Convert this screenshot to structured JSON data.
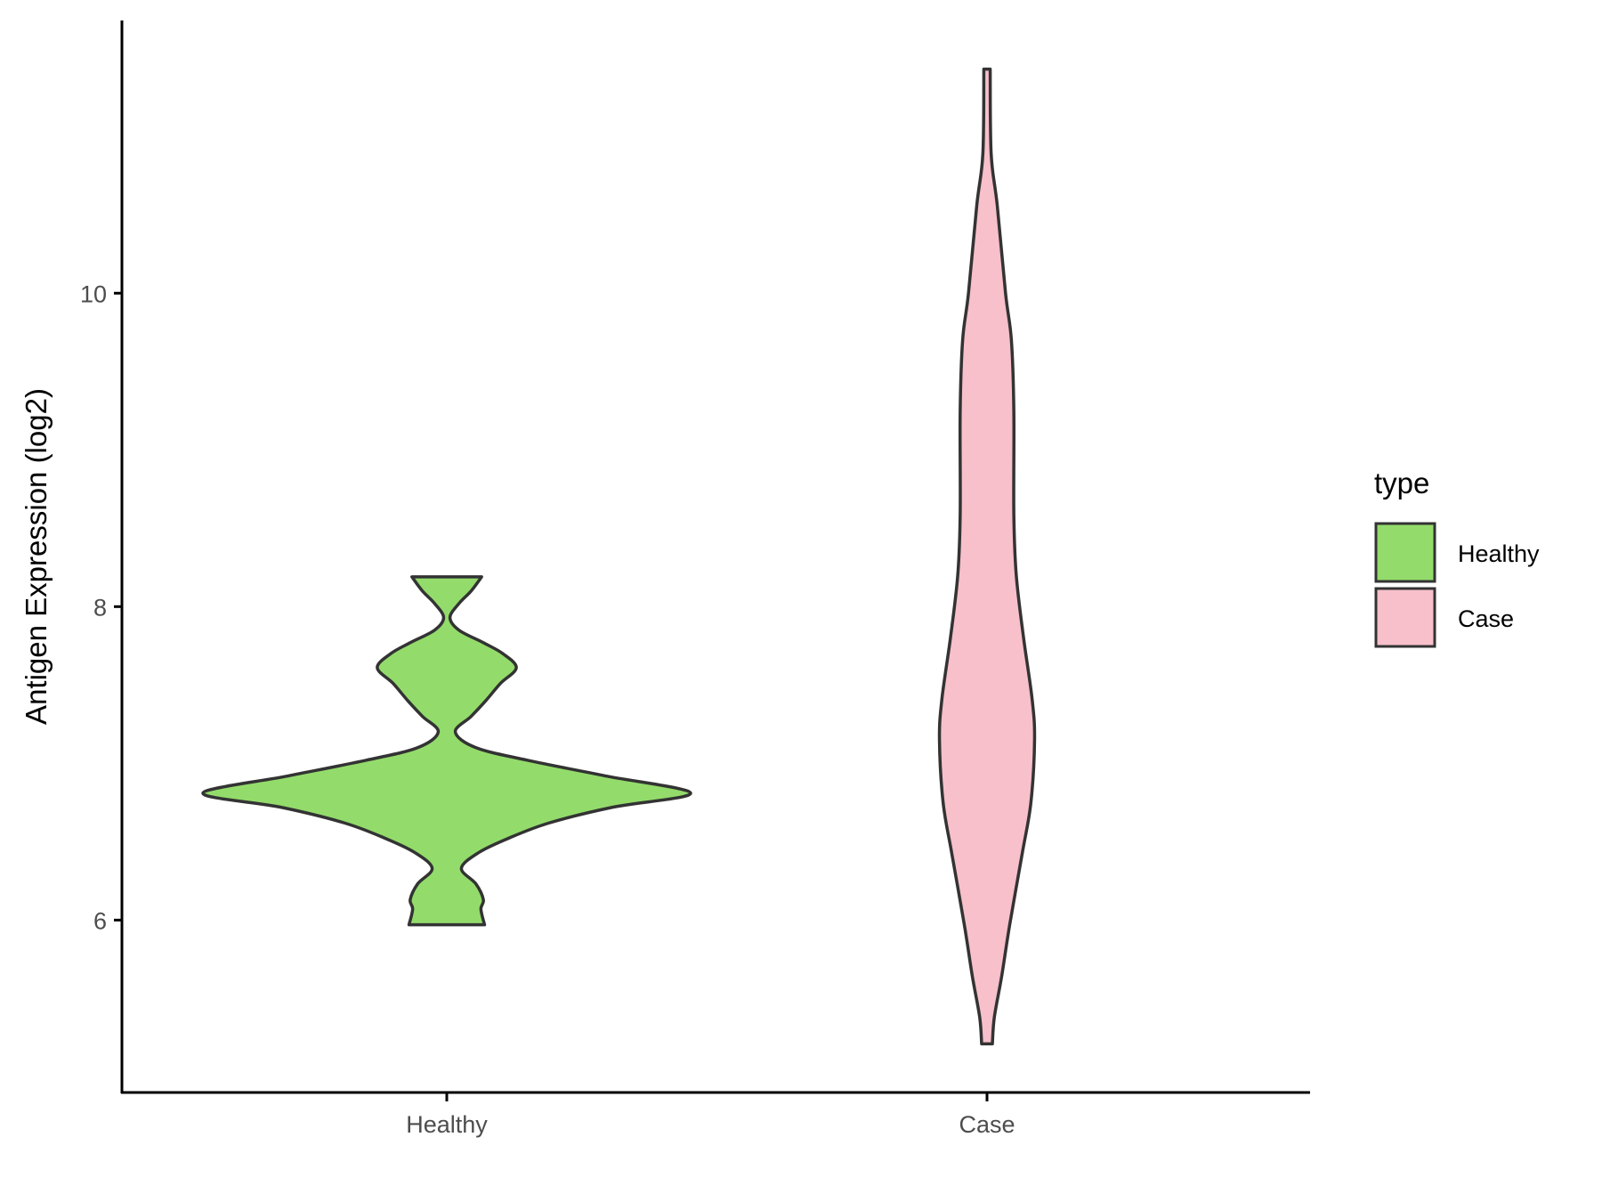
{
  "chart_data": {
    "type": "violin",
    "title": "",
    "xlabel": "",
    "ylabel": "Antigen Expression (log2)",
    "categories": [
      "Healthy",
      "Case"
    ],
    "ylim": [
      4.9,
      11.74
    ],
    "yticks": [
      6,
      8,
      10
    ],
    "ytick_labels": [
      "6",
      "8",
      "10"
    ],
    "grid": false,
    "legend": {
      "title": "type",
      "position": "right",
      "entries": [
        "Healthy",
        "Case"
      ]
    },
    "series": [
      {
        "name": "Healthy",
        "color": "#93dc6b",
        "min": 5.97,
        "max": 8.19,
        "profile": [
          [
            8.19,
            0.143
          ],
          [
            8.1,
            0.1
          ],
          [
            8.02,
            0.05
          ],
          [
            7.93,
            0.013
          ],
          [
            7.85,
            0.05
          ],
          [
            7.77,
            0.15
          ],
          [
            7.7,
            0.23
          ],
          [
            7.61,
            0.285
          ],
          [
            7.51,
            0.22
          ],
          [
            7.4,
            0.16
          ],
          [
            7.3,
            0.1
          ],
          [
            7.2,
            0.035
          ],
          [
            7.1,
            0.12
          ],
          [
            7.02,
            0.33
          ],
          [
            6.92,
            0.65
          ],
          [
            6.81,
            1.0
          ],
          [
            6.72,
            0.68
          ],
          [
            6.62,
            0.42
          ],
          [
            6.52,
            0.25
          ],
          [
            6.43,
            0.13
          ],
          [
            6.33,
            0.06
          ],
          [
            6.23,
            0.12
          ],
          [
            6.13,
            0.15
          ],
          [
            6.07,
            0.14
          ],
          [
            5.97,
            0.155
          ]
        ]
      },
      {
        "name": "Case",
        "color": "#f7c0cb",
        "min": 5.21,
        "max": 11.43,
        "profile": [
          [
            11.43,
            0.013
          ],
          [
            10.89,
            0.017
          ],
          [
            10.56,
            0.042
          ],
          [
            10.0,
            0.076
          ],
          [
            9.7,
            0.1
          ],
          [
            9.25,
            0.11
          ],
          [
            8.59,
            0.11
          ],
          [
            8.2,
            0.12
          ],
          [
            7.8,
            0.15
          ],
          [
            7.41,
            0.185
          ],
          [
            7.15,
            0.195
          ],
          [
            6.75,
            0.18
          ],
          [
            6.43,
            0.145
          ],
          [
            5.97,
            0.093
          ],
          [
            5.64,
            0.06
          ],
          [
            5.38,
            0.03
          ],
          [
            5.21,
            0.022
          ]
        ]
      }
    ],
    "outline_color": "#333333"
  }
}
